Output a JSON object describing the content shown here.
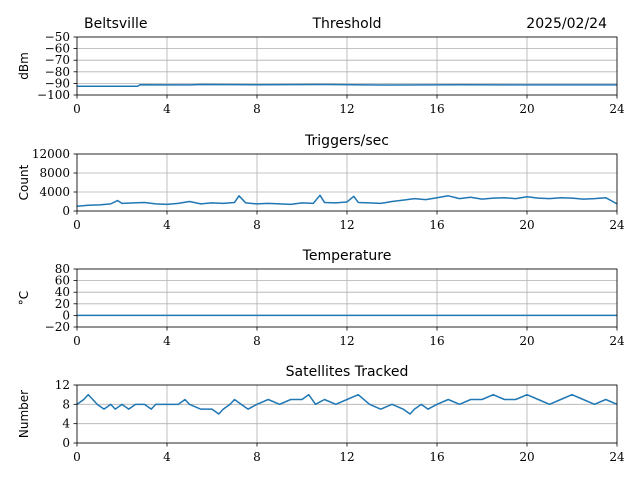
{
  "header": {
    "site": "Beltsville",
    "date": "2025/02/24"
  },
  "chart_data": [
    {
      "type": "line",
      "title": "Threshold",
      "xlabel": "",
      "ylabel": "dBm",
      "xlim": [
        0,
        24
      ],
      "ylim": [
        -100,
        -50
      ],
      "xticks": [
        0,
        4,
        8,
        12,
        16,
        20,
        24
      ],
      "yticks": [
        -100,
        -90,
        -80,
        -70,
        -60,
        -50
      ],
      "ytick_labels": [
        "−100",
        "−90",
        "−80",
        "−70",
        "−60",
        "−50"
      ],
      "grid": true,
      "color": "#1f77b4",
      "x": [
        0,
        2.7,
        2.8,
        5.0,
        5.5,
        8.0,
        11.0,
        14.0,
        17.0,
        20.0,
        24.0
      ],
      "y": [
        -92.5,
        -92.5,
        -91.2,
        -91.3,
        -91.0,
        -91.2,
        -91.0,
        -91.4,
        -91.2,
        -91.3,
        -91.3
      ]
    },
    {
      "type": "line",
      "title": "Triggers/sec",
      "xlabel": "",
      "ylabel": "Count",
      "xlim": [
        0,
        24
      ],
      "ylim": [
        0,
        12000
      ],
      "xticks": [
        0,
        4,
        8,
        12,
        16,
        20,
        24
      ],
      "yticks": [
        0,
        4000,
        8000,
        12000
      ],
      "ytick_labels": [
        "0",
        "4000",
        "8000",
        "12000"
      ],
      "grid": true,
      "color": "#1f77b4",
      "x": [
        0,
        0.5,
        1.0,
        1.5,
        1.8,
        2.0,
        2.5,
        3.0,
        3.5,
        4.0,
        4.5,
        5.0,
        5.5,
        6.0,
        6.5,
        7.0,
        7.2,
        7.5,
        8.0,
        8.5,
        9.0,
        9.5,
        10.0,
        10.5,
        10.8,
        11.0,
        11.5,
        12.0,
        12.3,
        12.5,
        13.0,
        13.5,
        14.0,
        14.5,
        15.0,
        15.5,
        16.0,
        16.5,
        17.0,
        17.5,
        18.0,
        18.5,
        19.0,
        19.5,
        20.0,
        20.5,
        21.0,
        21.5,
        22.0,
        22.5,
        23.0,
        23.5,
        24.0
      ],
      "y": [
        1000,
        1200,
        1300,
        1500,
        2200,
        1600,
        1700,
        1800,
        1500,
        1400,
        1600,
        2000,
        1500,
        1700,
        1600,
        1800,
        3200,
        1700,
        1500,
        1600,
        1500,
        1400,
        1700,
        1600,
        3300,
        1800,
        1700,
        1900,
        3100,
        1800,
        1700,
        1600,
        2000,
        2300,
        2600,
        2400,
        2800,
        3200,
        2600,
        2900,
        2500,
        2700,
        2800,
        2600,
        3000,
        2700,
        2600,
        2800,
        2700,
        2500,
        2600,
        2800,
        1500
      ]
    },
    {
      "type": "line",
      "title": "Temperature",
      "xlabel": "",
      "ylabel": "°C",
      "xlim": [
        0,
        24
      ],
      "ylim": [
        -20,
        80
      ],
      "xticks": [
        0,
        4,
        8,
        12,
        16,
        20,
        24
      ],
      "yticks": [
        -20,
        0,
        20,
        40,
        60,
        80
      ],
      "ytick_labels": [
        "−20",
        "0",
        "20",
        "40",
        "60",
        "80"
      ],
      "grid": true,
      "color": "#1f77b4",
      "x": [
        0,
        24
      ],
      "y": [
        0,
        0
      ]
    },
    {
      "type": "line",
      "title": "Satellites Tracked",
      "xlabel": "",
      "ylabel": "Number",
      "xlim": [
        0,
        24
      ],
      "ylim": [
        0,
        12
      ],
      "xticks": [
        0,
        4,
        8,
        12,
        16,
        20,
        24
      ],
      "yticks": [
        0,
        4,
        8,
        12
      ],
      "ytick_labels": [
        "0",
        "4",
        "8",
        "12"
      ],
      "grid": true,
      "color": "#1f77b4",
      "x": [
        0,
        0.3,
        0.5,
        0.7,
        0.9,
        1.2,
        1.5,
        1.7,
        2.0,
        2.3,
        2.6,
        3.0,
        3.3,
        3.5,
        4.0,
        4.5,
        4.8,
        5.0,
        5.5,
        6.0,
        6.3,
        6.5,
        6.8,
        7.0,
        7.3,
        7.6,
        8.0,
        8.5,
        9.0,
        9.5,
        10.0,
        10.3,
        10.6,
        11.0,
        11.5,
        12.0,
        12.5,
        13.0,
        13.5,
        14.0,
        14.5,
        14.8,
        15.0,
        15.3,
        15.6,
        16.0,
        16.5,
        17.0,
        17.5,
        18.0,
        18.5,
        19.0,
        19.5,
        20.0,
        20.5,
        21.0,
        21.5,
        22.0,
        22.5,
        23.0,
        23.5,
        24.0
      ],
      "y": [
        8,
        9,
        10,
        9,
        8,
        7,
        8,
        7,
        8,
        7,
        8,
        8,
        7,
        8,
        8,
        8,
        9,
        8,
        7,
        7,
        6,
        7,
        8,
        9,
        8,
        7,
        8,
        9,
        8,
        9,
        9,
        10,
        8,
        9,
        8,
        9,
        10,
        8,
        7,
        8,
        7,
        6,
        7,
        8,
        7,
        8,
        9,
        8,
        9,
        9,
        10,
        9,
        9,
        10,
        9,
        8,
        9,
        10,
        9,
        8,
        9,
        8
      ]
    }
  ]
}
